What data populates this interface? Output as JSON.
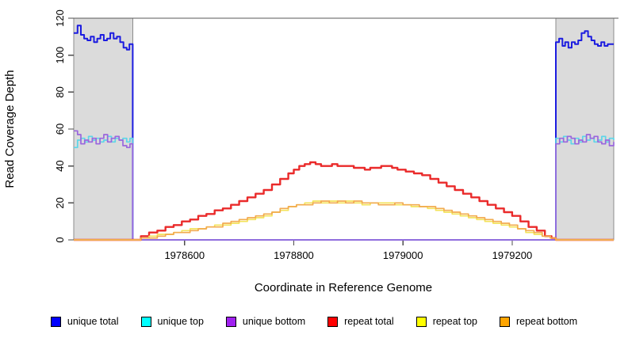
{
  "chart_data": {
    "type": "line",
    "subtype": "step",
    "title": "",
    "xlabel": "Coordinate in Reference Genome",
    "ylabel": "Read Coverage Depth",
    "xlim": [
      1978397,
      1979386
    ],
    "ylim": [
      0,
      120
    ],
    "x_ticks": [
      1978600,
      1978800,
      1979000,
      1979200
    ],
    "y_ticks": [
      0,
      20,
      40,
      60,
      80,
      100,
      120
    ],
    "grid": false,
    "legend_position": "bottom",
    "frame_color": "#5a5a5a",
    "axis_color": "#4d4d4d",
    "highlight_regions": [
      {
        "name": "repeat-flank-shade-left",
        "x0": 1978397,
        "x1": 1978505,
        "fill": "#DBDBDB",
        "border": "#8C8C8C"
      },
      {
        "name": "repeat-flank-shade-right",
        "x0": 1979280,
        "x1": 1979386,
        "fill": "#DBDBDB",
        "border": "#8C8C8C"
      }
    ],
    "series": [
      {
        "id": "unique-total",
        "name": "unique total",
        "legend_color": "#0000FF",
        "line_color": "#1c1ce0",
        "lwd": 2,
        "x": [
          1978397,
          1978404,
          1978410,
          1978416,
          1978422,
          1978428,
          1978434,
          1978440,
          1978446,
          1978452,
          1978458,
          1978464,
          1978470,
          1978476,
          1978482,
          1978488,
          1978494,
          1978499,
          1978505,
          1979280,
          1979286,
          1979292,
          1979297,
          1979303,
          1979309,
          1979315,
          1979321,
          1979327,
          1979333,
          1979339,
          1979345,
          1979351,
          1979357,
          1979363,
          1979369,
          1979375,
          1979386
        ],
        "y": [
          112,
          116,
          111,
          109,
          108,
          110,
          107,
          109,
          111,
          108,
          109,
          112,
          109,
          110,
          107,
          104,
          103,
          106,
          0,
          107,
          109,
          105,
          107,
          104,
          107,
          106,
          108,
          112,
          113,
          110,
          108,
          106,
          105,
          107,
          105,
          106,
          106
        ]
      },
      {
        "id": "unique-top",
        "name": "unique top",
        "legend_color": "#00FFFF",
        "line_color": "#5cd6e8",
        "lwd": 1.7,
        "x": [
          1978397,
          1978404,
          1978410,
          1978417,
          1978424,
          1978431,
          1978438,
          1978445,
          1978452,
          1978459,
          1978466,
          1978473,
          1978480,
          1978487,
          1978494,
          1978500,
          1978505,
          1979280,
          1979287,
          1979294,
          1979301,
          1979308,
          1979315,
          1979322,
          1979329,
          1979336,
          1979343,
          1979350,
          1979357,
          1979364,
          1979371,
          1979378,
          1979386
        ],
        "y": [
          50,
          54,
          55,
          53,
          56,
          54,
          55,
          53,
          54,
          56,
          53,
          55,
          54,
          55,
          53,
          55,
          0,
          55,
          53,
          56,
          54,
          52,
          55,
          53,
          56,
          54,
          55,
          53,
          54,
          56,
          53,
          55,
          54
        ]
      },
      {
        "id": "unique-bottom",
        "name": "unique bottom",
        "legend_color": "#A020F0",
        "line_color": "#9a66dd",
        "lwd": 1.7,
        "x": [
          1978397,
          1978404,
          1978410,
          1978417,
          1978424,
          1978431,
          1978438,
          1978445,
          1978452,
          1978459,
          1978466,
          1978473,
          1978480,
          1978487,
          1978494,
          1978500,
          1978505,
          1979280,
          1979287,
          1979294,
          1979301,
          1979308,
          1979315,
          1979322,
          1979329,
          1979336,
          1979343,
          1979350,
          1979357,
          1979364,
          1979371,
          1979378,
          1979386
        ],
        "y": [
          59,
          57,
          52,
          54,
          53,
          55,
          52,
          55,
          57,
          53,
          55,
          56,
          54,
          51,
          50,
          52,
          0,
          52,
          55,
          53,
          56,
          55,
          52,
          54,
          53,
          57,
          55,
          56,
          53,
          52,
          54,
          51,
          53
        ]
      },
      {
        "id": "repeat-total",
        "name": "repeat total",
        "legend_color": "#FF0000",
        "line_color": "#ea2a2a",
        "lwd": 2.4,
        "x": [
          1978397,
          1978505,
          1978520,
          1978535,
          1978550,
          1978565,
          1978580,
          1978595,
          1978610,
          1978625,
          1978640,
          1978655,
          1978670,
          1978685,
          1978700,
          1978715,
          1978730,
          1978745,
          1978760,
          1978775,
          1978790,
          1978800,
          1978810,
          1978820,
          1978830,
          1978840,
          1978850,
          1978860,
          1978870,
          1978880,
          1978890,
          1978900,
          1978910,
          1978920,
          1978930,
          1978940,
          1978950,
          1978960,
          1978970,
          1978980,
          1978990,
          1979005,
          1979020,
          1979035,
          1979050,
          1979065,
          1979080,
          1979095,
          1979110,
          1979125,
          1979140,
          1979155,
          1979170,
          1979185,
          1979200,
          1979215,
          1979230,
          1979245,
          1979260,
          1979272,
          1979280,
          1979386
        ],
        "y": [
          0,
          0,
          2,
          4,
          5,
          7,
          8,
          10,
          11,
          13,
          14,
          16,
          17,
          19,
          21,
          23,
          25,
          27,
          30,
          33,
          36,
          38,
          40,
          41,
          42,
          41,
          40,
          40,
          41,
          40,
          40,
          40,
          39,
          39,
          38,
          39,
          39,
          40,
          40,
          39,
          38,
          37,
          36,
          35,
          33,
          31,
          29,
          27,
          25,
          23,
          21,
          19,
          17,
          15,
          13,
          10,
          7,
          5,
          2,
          1,
          0,
          0
        ]
      },
      {
        "id": "repeat-top",
        "name": "repeat top",
        "legend_color": "#FFFF00",
        "line_color": "#f3e35a",
        "lwd": 1.7,
        "x": [
          1978397,
          1978505,
          1978520,
          1978535,
          1978550,
          1978565,
          1978580,
          1978595,
          1978610,
          1978625,
          1978640,
          1978655,
          1978670,
          1978685,
          1978700,
          1978715,
          1978730,
          1978745,
          1978760,
          1978775,
          1978790,
          1978805,
          1978820,
          1978835,
          1978850,
          1978865,
          1978880,
          1978895,
          1978910,
          1978925,
          1978940,
          1978955,
          1978970,
          1978985,
          1979000,
          1979015,
          1979030,
          1979045,
          1979060,
          1979075,
          1979090,
          1979105,
          1979120,
          1979135,
          1979150,
          1979165,
          1979180,
          1979195,
          1979210,
          1979225,
          1979240,
          1979255,
          1979270,
          1979280,
          1979386
        ],
        "y": [
          0,
          0,
          1,
          2,
          3,
          3,
          4,
          5,
          6,
          6,
          7,
          8,
          8,
          9,
          10,
          11,
          12,
          13,
          15,
          16,
          18,
          19,
          20,
          21,
          20,
          21,
          20,
          21,
          20,
          19,
          20,
          20,
          20,
          19,
          19,
          18,
          18,
          17,
          16,
          15,
          14,
          13,
          12,
          11,
          10,
          9,
          8,
          7,
          6,
          4,
          3,
          2,
          1,
          0,
          0
        ]
      },
      {
        "id": "repeat-bottom",
        "name": "repeat bottom",
        "legend_color": "#FFA500",
        "line_color": "#f2ab4e",
        "lwd": 1.7,
        "x": [
          1978397,
          1978505,
          1978520,
          1978535,
          1978550,
          1978565,
          1978580,
          1978595,
          1978610,
          1978625,
          1978640,
          1978655,
          1978670,
          1978685,
          1978700,
          1978715,
          1978730,
          1978745,
          1978760,
          1978775,
          1978790,
          1978805,
          1978820,
          1978835,
          1978850,
          1978865,
          1978880,
          1978895,
          1978910,
          1978925,
          1978940,
          1978955,
          1978970,
          1978985,
          1979000,
          1979015,
          1979030,
          1979045,
          1979060,
          1979075,
          1979090,
          1979105,
          1979120,
          1979135,
          1979150,
          1979165,
          1979180,
          1979195,
          1979210,
          1979225,
          1979240,
          1979255,
          1979270,
          1979280,
          1979386
        ],
        "y": [
          0,
          0,
          1,
          1,
          2,
          3,
          4,
          4,
          5,
          6,
          7,
          7,
          9,
          10,
          11,
          12,
          13,
          14,
          15,
          17,
          18,
          19,
          19,
          20,
          21,
          20,
          21,
          20,
          21,
          20,
          20,
          19,
          19,
          20,
          19,
          19,
          18,
          18,
          17,
          16,
          15,
          14,
          13,
          12,
          11,
          10,
          9,
          8,
          6,
          5,
          4,
          2,
          1,
          0,
          0
        ]
      }
    ]
  }
}
